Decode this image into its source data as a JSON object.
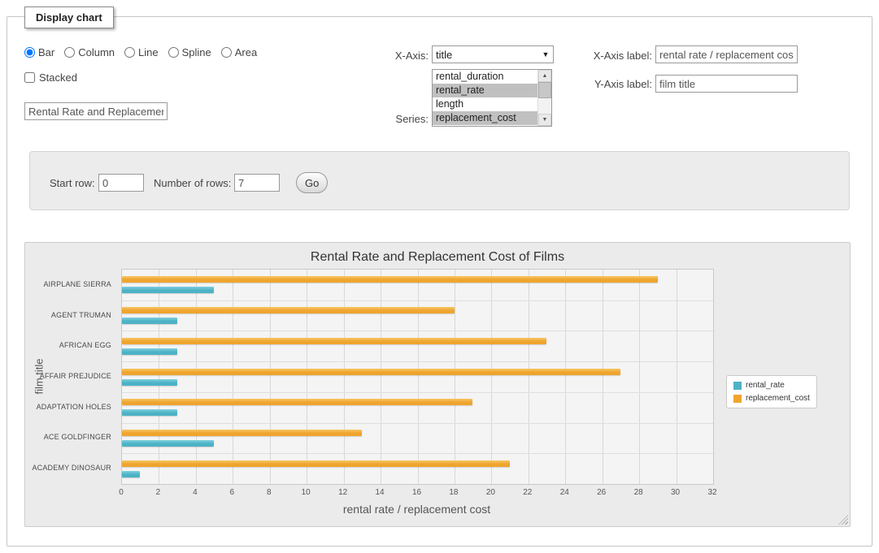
{
  "panel": {
    "legend": "Display chart"
  },
  "icons": {
    "dropdown_arrow": "▼",
    "scroll_up": "▲",
    "scroll_down": "▼"
  },
  "controls": {
    "chart_types": [
      {
        "label": "Bar",
        "checked": true
      },
      {
        "label": "Column",
        "checked": false
      },
      {
        "label": "Line",
        "checked": false
      },
      {
        "label": "Spline",
        "checked": false
      },
      {
        "label": "Area",
        "checked": false
      }
    ],
    "stacked": {
      "label": "Stacked",
      "checked": false
    },
    "chart_title_input": "Rental Rate and Replacement Cost of Films",
    "x_axis": {
      "label": "X-Axis:",
      "selected": "title"
    },
    "series": {
      "label": "Series:",
      "options": [
        {
          "label": "rental_duration",
          "selected": false
        },
        {
          "label": "rental_rate",
          "selected": true
        },
        {
          "label": "length",
          "selected": false
        },
        {
          "label": "replacement_cost",
          "selected": true
        }
      ]
    },
    "x_axis_label": {
      "label": "X-Axis label:",
      "value": "rental rate / replacement cost"
    },
    "y_axis_label": {
      "label": "Y-Axis label:",
      "value": "film title"
    }
  },
  "row_controls": {
    "start_row": {
      "label": "Start row:",
      "value": "0"
    },
    "number_of_rows": {
      "label": "Number of rows:",
      "value": "7"
    },
    "go_button": "Go"
  },
  "chart_data": {
    "type": "bar",
    "title": "Rental Rate and Replacement Cost of Films",
    "categories": [
      "AIRPLANE SIERRA",
      "AGENT TRUMAN",
      "AFRICAN EGG",
      "AFFAIR PREJUDICE",
      "ADAPTATION HOLES",
      "ACE GOLDFINGER",
      "ACADEMY DINOSAUR"
    ],
    "series": [
      {
        "name": "rental_rate",
        "color": "#4db2c6",
        "color_light": "#7fd0de",
        "values": [
          4.99,
          2.99,
          2.99,
          2.99,
          2.99,
          4.99,
          0.99
        ]
      },
      {
        "name": "replacement_cost",
        "color": "#efa42e",
        "color_light": "#f7c765",
        "values": [
          28.99,
          17.99,
          22.99,
          26.99,
          18.99,
          12.99,
          20.99
        ]
      }
    ],
    "xlabel": "rental rate / replacement cost",
    "ylabel": "film title",
    "xlim": [
      0,
      32
    ],
    "x_tick_step": 2,
    "legend_position": "right",
    "grid": true
  }
}
